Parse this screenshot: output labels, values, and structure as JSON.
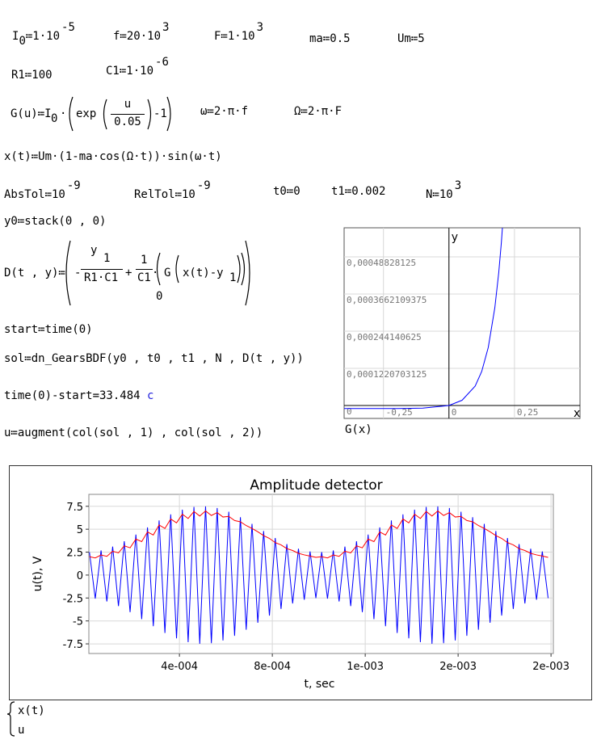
{
  "formulas": [
    [
      "I",
      "0",
      "≔1·10",
      "-5"
    ],
    [
      "f≔20·10",
      "3"
    ],
    [
      "F≔1·10",
      "3"
    ],
    [
      "ma≔0.5"
    ],
    [
      "Um≔5"
    ],
    [
      "R1≔100"
    ],
    [
      "C1≔1·10",
      "-6"
    ],
    [
      "G(u)≔I",
      "0",
      "·",
      "exp",
      "u",
      "0.05",
      "-1"
    ],
    [
      "ω≔2·π·f"
    ],
    [
      "Ω≔2·π·F"
    ],
    [
      "x(t)≔Um·(1-ma·cos(Ω·t))·sin(ω·t)"
    ],
    [
      "AbsTol≔10",
      "-9"
    ],
    [
      "RelTol≔10",
      "-9"
    ],
    [
      "t0≔0"
    ],
    [
      "t1≔0.002"
    ],
    [
      "N≔10",
      "3"
    ],
    [
      "y0≔stack(0 , 0)"
    ],
    [
      "D(t , y)≔",
      "-",
      "y",
      "1",
      "R1·C1",
      "+",
      "1",
      "C1",
      "·",
      "G",
      "x(t)-y",
      "1",
      "0"
    ],
    [
      "start≔time(0)"
    ],
    [
      "sol≔dn_GearsBDF(y0 , t0 , t1 , N , D(t , y))"
    ],
    [
      "time(0)-start=33.484",
      "c"
    ],
    [
      "u≔augment(col(sol , 1) , col(sol , 2))"
    ]
  ],
  "chart_data": [
    {
      "type": "line",
      "xlabel": "x",
      "ylabel": "y",
      "grid": true,
      "x": [
        -0.4,
        -0.3,
        -0.2,
        -0.1,
        0,
        0.05,
        0.1,
        0.125,
        0.15,
        0.175,
        0.19,
        0.2,
        0.21
      ],
      "series": [
        {
          "name": "G(x)",
          "color": "#0000ff",
          "values": [
            -9.9966e-06,
            -9.9752e-06,
            -9.8168e-06,
            -8.6466e-06,
            0,
            1.7183e-05,
            6.3891e-05,
            0.00011182,
            0.00019086,
            0.00032115,
            0.00043701,
            0.00053598,
            0.00065686
          ]
        }
      ],
      "xlim": [
        -0.4,
        0.5
      ],
      "ylim": [
        -4.25e-05,
        0.000584
      ],
      "xticks": [
        {
          "value": -0.25,
          "label": "-0,25"
        },
        0,
        {
          "value": 0.25,
          "label": "0,25"
        }
      ],
      "yticks": [
        0,
        {
          "value": 0.0001220703125,
          "label": "0,0001220703125"
        },
        {
          "value": 0.000244140625,
          "label": "0,000244140625"
        },
        {
          "value": 0.0003662109375,
          "label": "0,0003662109375"
        },
        {
          "value": 0.00048828125,
          "label": "0,00048828125"
        }
      ]
    },
    {
      "type": "line",
      "title": "Amplitude detector",
      "xlabel": "t, sec",
      "ylabel": "u(t), V",
      "grid": true,
      "x": [
        1.25e-05,
        3.75e-05,
        6.25e-05,
        8.75e-05,
        0.0001125,
        0.0001375,
        0.0001625,
        0.0001875,
        0.0002125,
        0.0002375,
        0.0002625,
        0.0002875,
        0.0003125,
        0.0003375,
        0.0003625,
        0.0003875,
        0.0004125,
        0.0004375,
        0.0004625,
        0.0004875,
        0.0005125,
        0.0005375,
        0.0005625,
        0.0005875,
        0.0006125,
        0.0006375,
        0.0006625,
        0.0006875,
        0.0007125,
        0.0007375,
        0.0007625,
        0.0007875,
        0.0008125,
        0.0008375,
        0.0008625,
        0.0008875,
        0.0009125,
        0.0009375,
        0.0009625,
        0.0009875,
        0.0010125,
        0.0010375,
        0.0010625,
        0.0010875,
        0.0011125,
        0.0011375,
        0.0011625,
        0.0011875,
        0.0012125,
        0.0012375,
        0.0012625,
        0.0012875,
        0.0013125,
        0.0013375,
        0.0013625,
        0.0013875,
        0.0014125,
        0.0014375,
        0.0014625,
        0.0014875,
        0.0015125,
        0.0015375,
        0.0015625,
        0.0015875,
        0.0016125,
        0.0016375,
        0.0016625,
        0.0016875,
        0.0017125,
        0.0017375,
        0.0017625,
        0.0017875,
        0.0018125,
        0.0018375,
        0.0018625,
        0.0018875,
        0.0019125,
        0.0019375,
        0.0019625,
        0.0019875
      ],
      "series": [
        {
          "name": "x(t)",
          "color": "#0000ff",
          "values": [
            2.51,
            -2.57,
            2.69,
            -2.87,
            3.1,
            -3.38,
            3.69,
            -4.04,
            4.42,
            -4.8,
            5.2,
            -5.58,
            5.96,
            -6.31,
            6.62,
            -6.9,
            7.13,
            -7.31,
            7.43,
            -7.49,
            7.49,
            -7.43,
            7.31,
            -7.13,
            6.9,
            -6.62,
            6.31,
            -5.96,
            5.58,
            -5.2,
            4.8,
            -4.42,
            4.04,
            -3.69,
            3.38,
            -3.1,
            2.87,
            -2.69,
            2.57,
            -2.51,
            2.51,
            -2.57,
            2.69,
            -2.87,
            3.1,
            -3.38,
            3.69,
            -4.04,
            4.42,
            -4.8,
            5.2,
            -5.58,
            5.96,
            -6.31,
            6.62,
            -6.9,
            7.13,
            -7.31,
            7.43,
            -7.49,
            7.49,
            -7.43,
            7.31,
            -7.13,
            6.9,
            -6.62,
            6.31,
            -5.96,
            5.58,
            -5.2,
            4.8,
            -4.42,
            4.04,
            -3.69,
            3.38,
            -3.1,
            2.87,
            -2.69,
            2.57,
            -2.51
          ]
        },
        {
          "name": "u",
          "color": "#ff0000",
          "values": [
            2.01,
            1.87,
            2.19,
            2.04,
            2.6,
            2.42,
            3.19,
            2.97,
            3.92,
            3.65,
            4.7,
            4.37,
            5.46,
            5.08,
            6.12,
            5.69,
            6.63,
            6.17,
            6.93,
            6.44,
            6.99,
            6.5,
            6.81,
            6.33,
            6.4,
            5.95,
            5.81,
            5.4,
            5.08,
            4.72,
            4.3,
            4.0,
            3.54,
            3.29,
            2.88,
            2.68,
            2.37,
            2.2,
            2.07,
            1.93,
            2.01,
            1.87,
            2.19,
            2.04,
            2.6,
            2.42,
            3.19,
            2.97,
            3.92,
            3.65,
            4.7,
            4.37,
            5.46,
            5.08,
            6.12,
            5.69,
            6.63,
            6.17,
            6.93,
            6.44,
            6.99,
            6.5,
            6.81,
            6.33,
            6.4,
            5.95,
            5.81,
            5.4,
            5.08,
            4.72,
            4.3,
            4.0,
            3.54,
            3.29,
            2.88,
            2.68,
            2.37,
            2.2,
            2.07,
            1.93
          ]
        }
      ],
      "xlim": [
        1e-05,
        0.00201
      ],
      "ylim": [
        -8.55,
        8.8
      ],
      "xticks": [
        {
          "value": 0.0004,
          "label": "4e-004"
        },
        {
          "value": 0.0008,
          "label": "8e-004"
        },
        {
          "value": 0.0012,
          "label": "1e-003"
        },
        {
          "value": 0.0016,
          "label": "2e-003"
        },
        {
          "value": 0.002,
          "label": "2e-003"
        }
      ],
      "yticks": [
        -7.5,
        -5,
        -2.5,
        0,
        2.5,
        5,
        7.5
      ]
    }
  ]
}
